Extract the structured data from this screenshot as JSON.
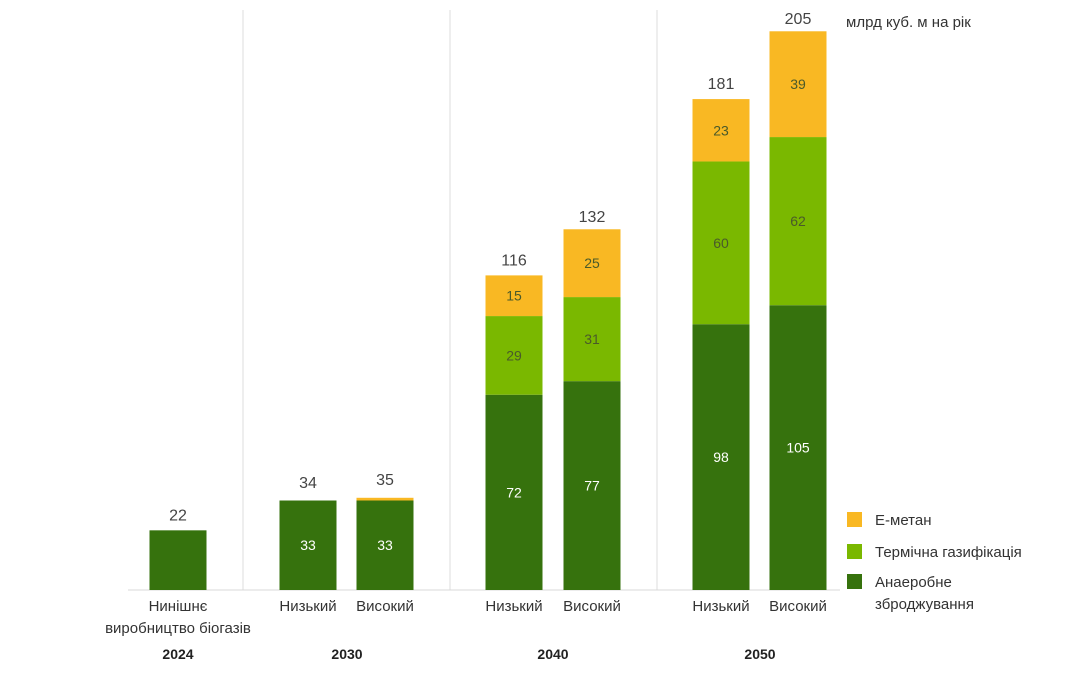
{
  "chart_data": {
    "type": "bar",
    "stacked": true,
    "unit": "млрд куб. м на рік",
    "groups": [
      {
        "label": "2024",
        "bars": [
          {
            "category": [
              "Нинішнє",
              "виробництво біогазів"
            ],
            "total": 22,
            "segments": {
              "anaerobic": 22,
              "thermal": 0,
              "emethane": 0
            },
            "show_segment_labels": false
          }
        ]
      },
      {
        "label": "2030",
        "bars": [
          {
            "category": [
              "Низький"
            ],
            "total": 34,
            "segments": {
              "anaerobic": 33,
              "thermal": 0,
              "emethane": 0
            },
            "show_segment_labels": true
          },
          {
            "category": [
              "Високий"
            ],
            "total": 35,
            "segments": {
              "anaerobic": 33,
              "thermal": 0,
              "emethane": 1
            },
            "show_segment_labels": true
          }
        ]
      },
      {
        "label": "2040",
        "bars": [
          {
            "category": [
              "Низький"
            ],
            "total": 116,
            "segments": {
              "anaerobic": 72,
              "thermal": 29,
              "emethane": 15
            },
            "show_segment_labels": true
          },
          {
            "category": [
              "Високий"
            ],
            "total": 132,
            "segments": {
              "anaerobic": 77,
              "thermal": 31,
              "emethane": 25
            },
            "show_segment_labels": true
          }
        ]
      },
      {
        "label": "2050",
        "bars": [
          {
            "category": [
              "Низький"
            ],
            "total": 181,
            "segments": {
              "anaerobic": 98,
              "thermal": 60,
              "emethane": 23
            },
            "show_segment_labels": true
          },
          {
            "category": [
              "Високий"
            ],
            "total": 205,
            "segments": {
              "anaerobic": 105,
              "thermal": 62,
              "emethane": 39
            },
            "show_segment_labels": true
          }
        ]
      }
    ],
    "series": [
      {
        "key": "emethane",
        "name": "Е-метан",
        "color": "#f9b823"
      },
      {
        "key": "thermal",
        "name": [
          "Термічна газифікація"
        ],
        "color": "#7ab800"
      },
      {
        "key": "anaerobic",
        "name": [
          "Анаеробне",
          "зброджування"
        ],
        "color": "#36720d"
      }
    ],
    "legend_position": "bottom-right",
    "ylim": [
      0,
      205
    ]
  }
}
